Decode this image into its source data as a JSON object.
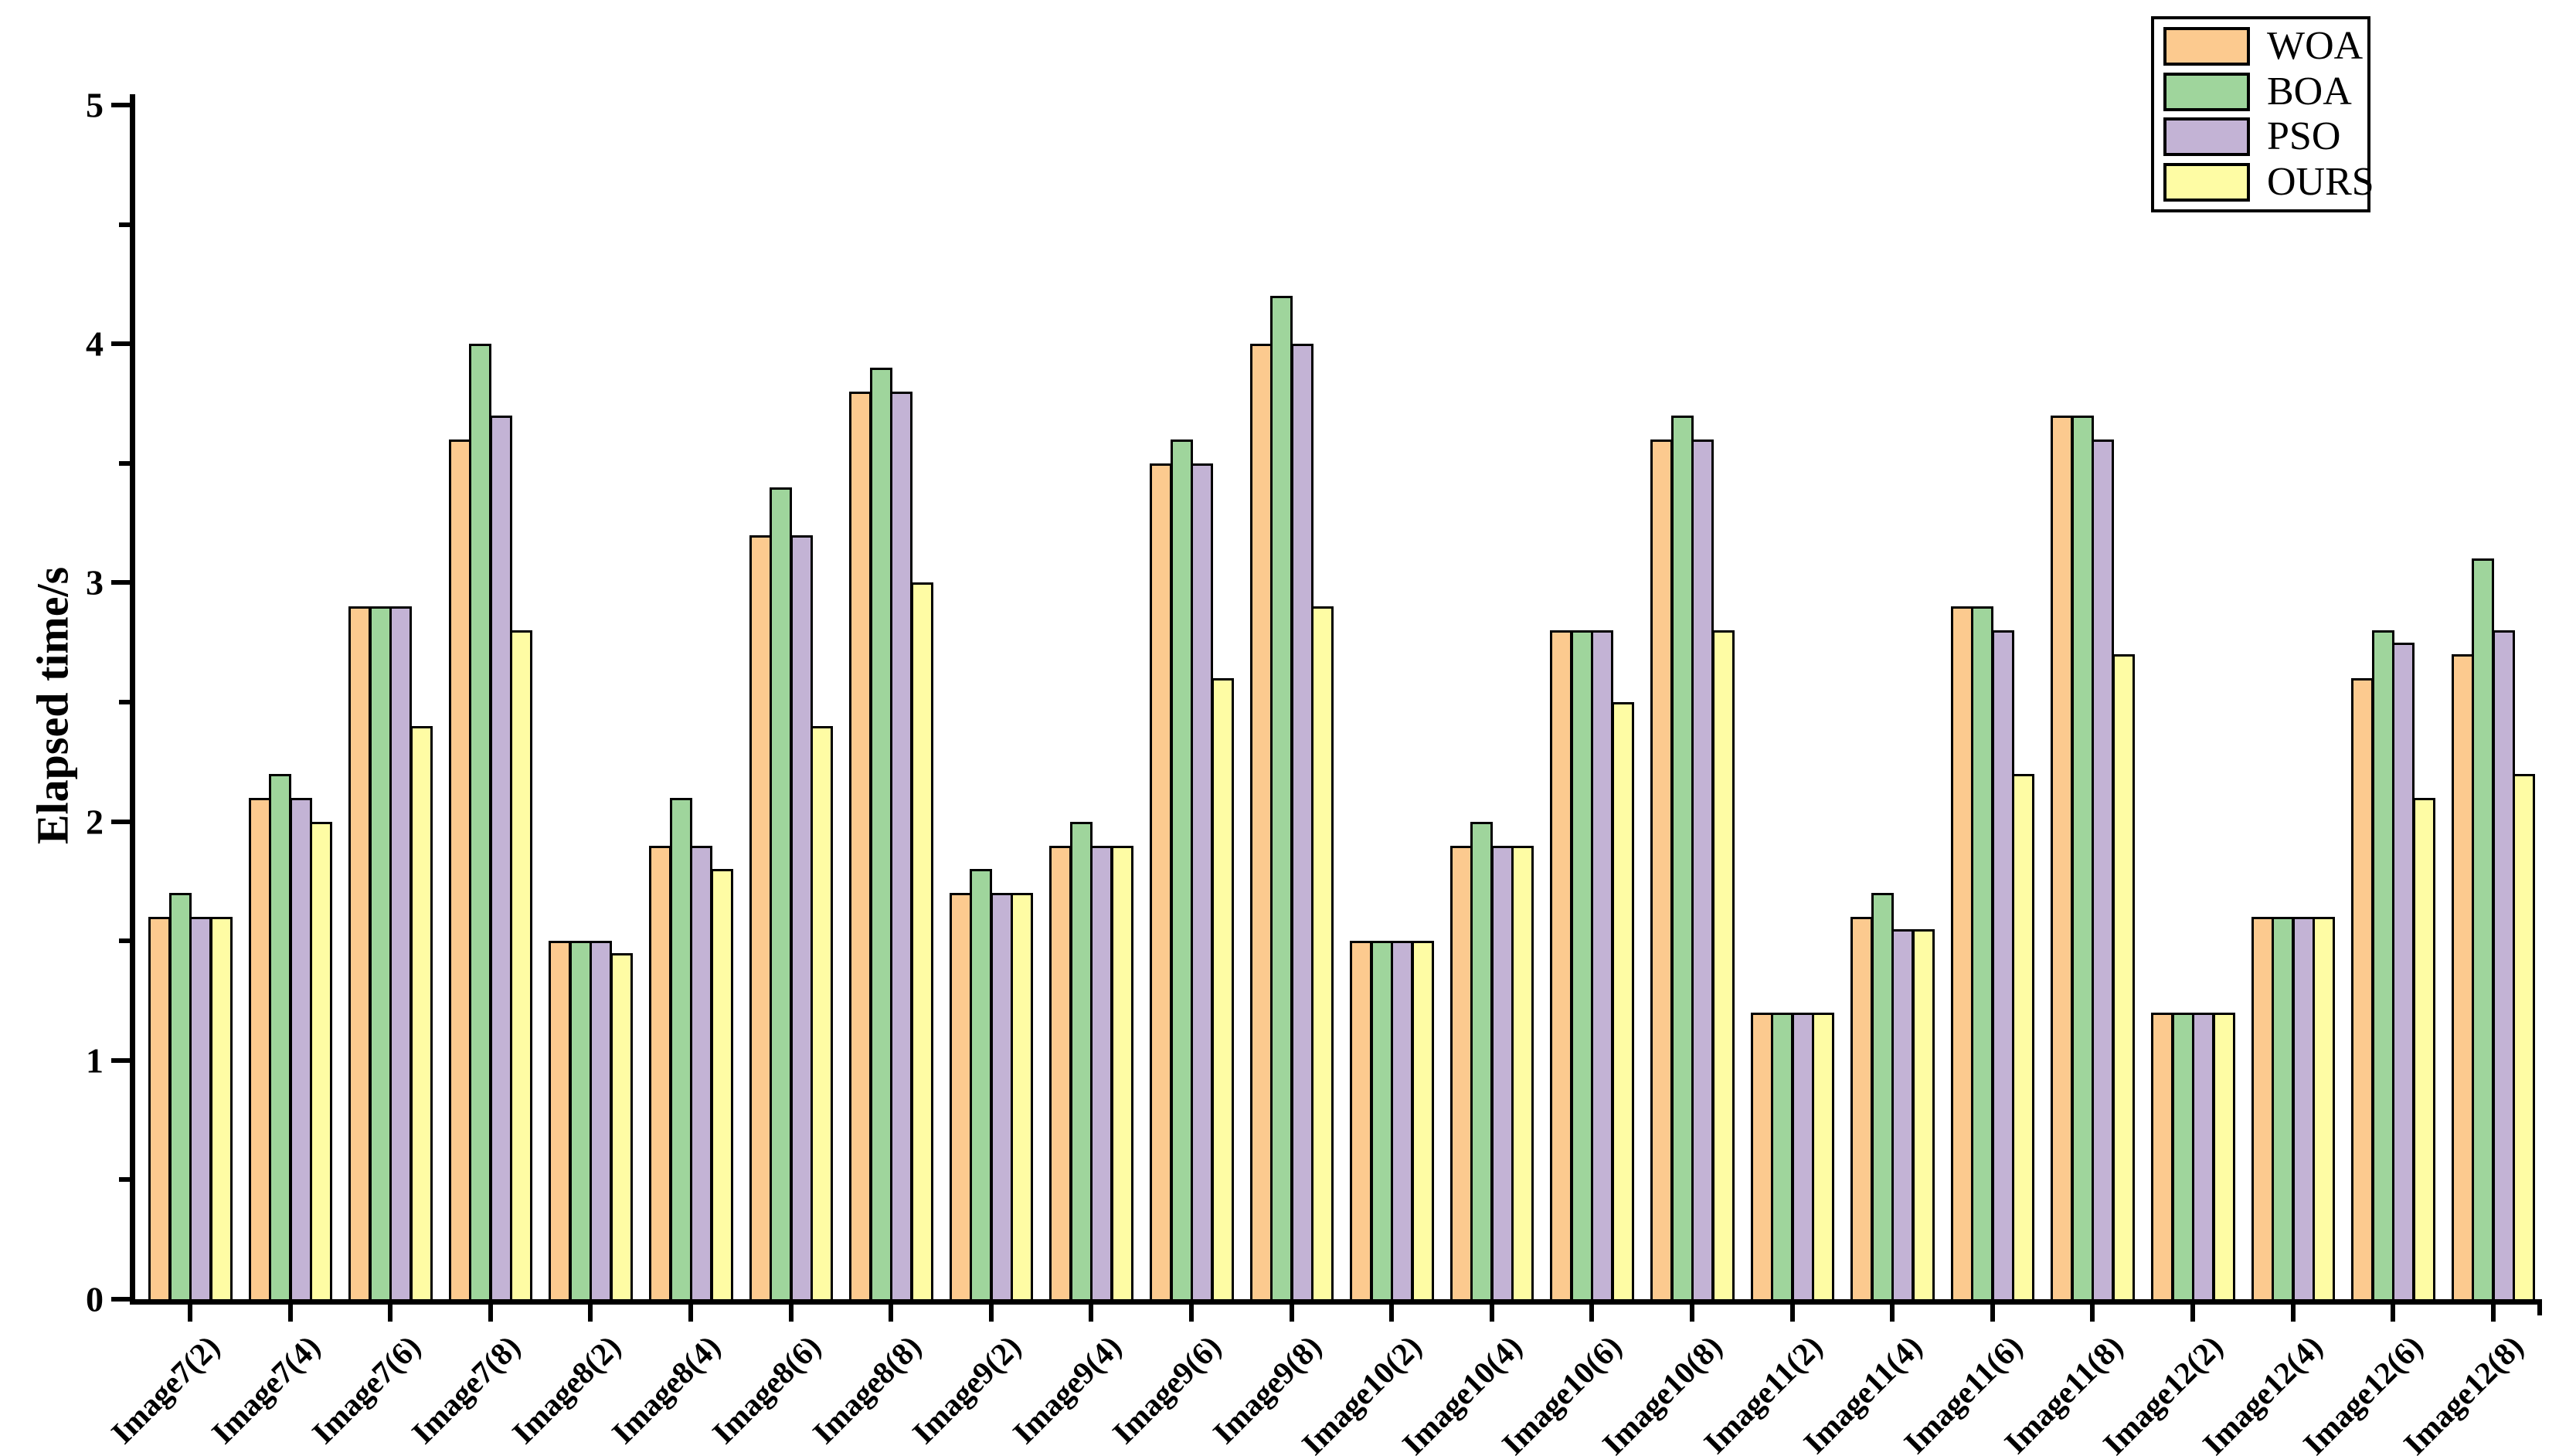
{
  "chart_data": {
    "type": "bar",
    "title": "",
    "xlabel": "",
    "ylabel": "Elapsed time/s",
    "ylim": [
      0,
      5
    ],
    "yticks_major": [
      0,
      1,
      2,
      3,
      4,
      5
    ],
    "ytick_minor_step": 0.5,
    "grid": false,
    "legend_position": "top-right",
    "categories": [
      "Image7(2)",
      "Image7(4)",
      "Image7(6)",
      "Image7(8)",
      "Image8(2)",
      "Image8(4)",
      "Image8(6)",
      "Image8(8)",
      "Image9(2)",
      "Image9(4)",
      "Image9(6)",
      "Image9(8)",
      "Image10(2)",
      "Image10(4)",
      "Image10(6)",
      "Image10(8)",
      "Image11(2)",
      "Image11(4)",
      "Image11(6)",
      "Image11(8)",
      "Image12(2)",
      "Image12(4)",
      "Image12(6)",
      "Image12(8)"
    ],
    "series": [
      {
        "name": "WOA",
        "color": "#FCCA8F",
        "values": [
          1.6,
          2.1,
          2.9,
          3.6,
          1.5,
          1.9,
          3.2,
          3.8,
          1.7,
          1.9,
          3.5,
          4.0,
          1.5,
          1.9,
          2.8,
          3.6,
          1.2,
          1.6,
          2.9,
          3.7,
          1.2,
          1.6,
          2.6,
          2.7
        ]
      },
      {
        "name": "BOA",
        "color": "#9FD59C",
        "values": [
          1.7,
          2.2,
          2.9,
          4.0,
          1.5,
          2.1,
          3.4,
          3.9,
          1.8,
          2.0,
          3.6,
          4.2,
          1.5,
          2.0,
          2.8,
          3.7,
          1.2,
          1.7,
          2.9,
          3.7,
          1.2,
          1.6,
          2.8,
          3.1
        ]
      },
      {
        "name": "PSO",
        "color": "#C3B3D5",
        "values": [
          1.6,
          2.1,
          2.9,
          3.7,
          1.5,
          1.9,
          3.2,
          3.8,
          1.7,
          1.9,
          3.5,
          4.0,
          1.5,
          1.9,
          2.8,
          3.6,
          1.2,
          1.55,
          2.8,
          3.6,
          1.2,
          1.6,
          2.75,
          2.8
        ]
      },
      {
        "name": "OURS",
        "color": "#FEFCA4",
        "values": [
          1.6,
          2.0,
          2.4,
          2.8,
          1.45,
          1.8,
          2.4,
          3.0,
          1.7,
          1.9,
          2.6,
          2.9,
          1.5,
          1.9,
          2.5,
          2.8,
          1.2,
          1.55,
          2.2,
          2.7,
          1.2,
          1.6,
          2.1,
          2.2
        ]
      }
    ]
  },
  "colors": {
    "background": "#FFFFFF",
    "axis": "#000000",
    "bar_border": "#000000"
  }
}
